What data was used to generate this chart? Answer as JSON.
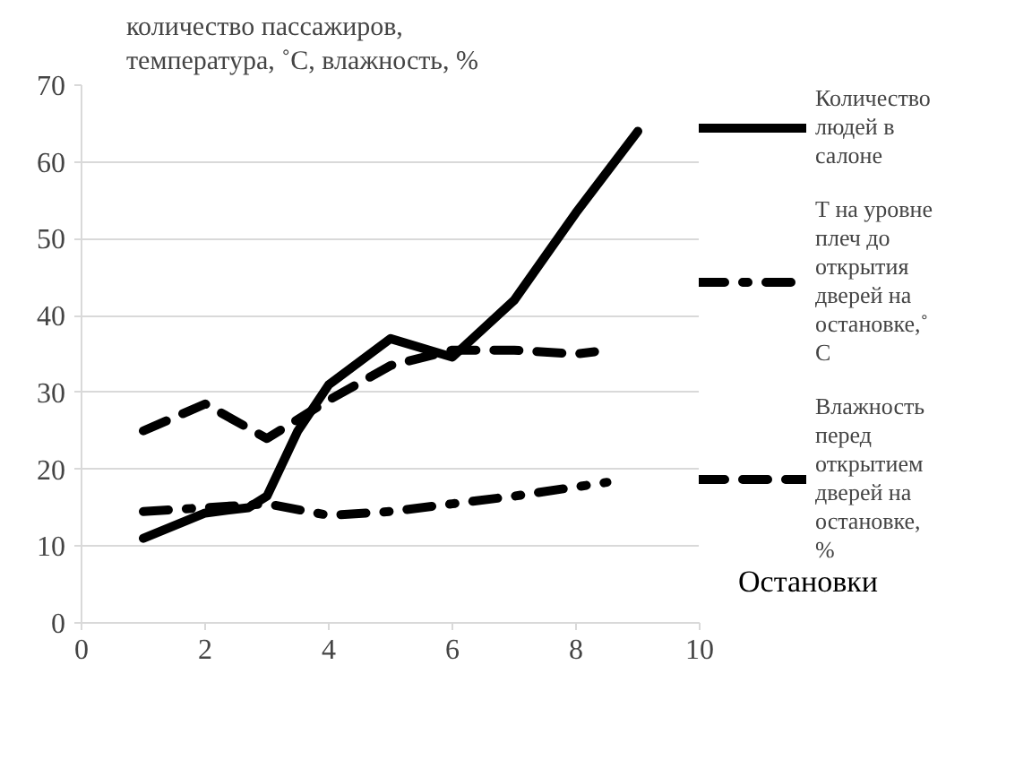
{
  "chart_data": {
    "type": "line",
    "ylabel": "количество пассажиров, температура, ˚С, влажность, %",
    "xlabel": "Остановки",
    "xlim": [
      0,
      10
    ],
    "xticks": [
      0,
      2,
      4,
      6,
      8,
      10
    ],
    "ylim": [
      0,
      70
    ],
    "yticks": [
      0,
      10,
      20,
      30,
      40,
      50,
      60,
      70
    ],
    "grid": "y",
    "legend": "right",
    "series": [
      {
        "name": "Количество людей в салоне",
        "color": "#000000",
        "line_style": "solid",
        "x": [
          1,
          2,
          2.7,
          3,
          3.5,
          4,
          5,
          6,
          7,
          8,
          9
        ],
        "values": [
          11,
          14.3,
          15,
          16.5,
          25,
          31,
          37,
          34.6,
          42,
          53.4,
          64
        ]
      },
      {
        "name": "Т на уровне плеч до открытия дверей на остановке,˚ С",
        "color": "#000000",
        "line_style": "dashdot",
        "x": [
          1,
          2,
          3,
          4,
          5,
          6,
          7,
          8,
          8.5
        ],
        "values": [
          14.5,
          15,
          15.5,
          14,
          14.5,
          15.5,
          16.5,
          17.7,
          18.3
        ]
      },
      {
        "name": "Влажность перед открытием дверей на остановке, %",
        "color": "#000000",
        "line_style": "dashed",
        "x": [
          1,
          2,
          3,
          4,
          5,
          6,
          7,
          8,
          8.3
        ],
        "values": [
          25,
          28.5,
          24,
          29,
          33.5,
          35.5,
          35.5,
          35,
          35.3
        ]
      }
    ]
  }
}
